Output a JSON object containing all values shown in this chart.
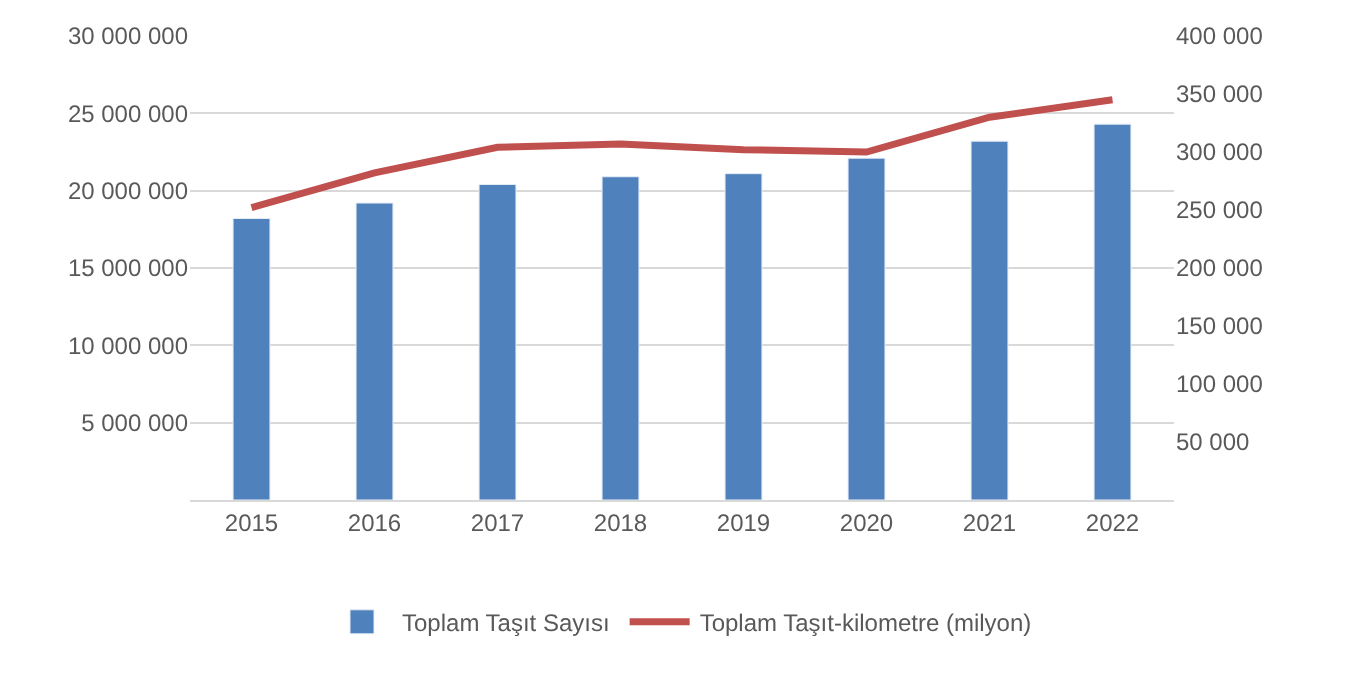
{
  "chart_data": {
    "type": "bar",
    "categories": [
      "2015",
      "2016",
      "2017",
      "2018",
      "2019",
      "2020",
      "2021",
      "2022"
    ],
    "series": [
      {
        "name": "Toplam Taşıt Sayısı",
        "color": "#4f81bd",
        "values": [
          18200000,
          19200000,
          20400000,
          20900000,
          21100000,
          22100000,
          23200000,
          24300000
        ]
      },
      {
        "name": "Toplam Taşıt-kilometre (milyon)",
        "color": "#c0504d",
        "type": "line",
        "axis": "y2",
        "values": [
          252000,
          282000,
          304000,
          307000,
          302000,
          300000,
          330000,
          345000
        ]
      }
    ],
    "ylim": [
      0,
      30000000
    ],
    "yticks": [
      {
        "value": 5000000,
        "label": "5 000 000"
      },
      {
        "value": 10000000,
        "label": "10 000 000"
      },
      {
        "value": 15000000,
        "label": "15 000 000"
      },
      {
        "value": 20000000,
        "label": "20 000 000"
      },
      {
        "value": 25000000,
        "label": "25 000 000"
      },
      {
        "value": 30000000,
        "label": "30 000 000"
      }
    ],
    "y2lim": [
      0,
      400000
    ],
    "y2ticks": [
      {
        "value": 50000,
        "label": "50 000"
      },
      {
        "value": 100000,
        "label": "100 000"
      },
      {
        "value": 150000,
        "label": "150 000"
      },
      {
        "value": 200000,
        "label": "200 000"
      },
      {
        "value": 250000,
        "label": "250 000"
      },
      {
        "value": 300000,
        "label": "300 000"
      },
      {
        "value": 350000,
        "label": "350 000"
      },
      {
        "value": 400000,
        "label": "400 000"
      }
    ],
    "grid": "y",
    "legend": "bottom",
    "marker": "none",
    "line_style": "solid"
  }
}
